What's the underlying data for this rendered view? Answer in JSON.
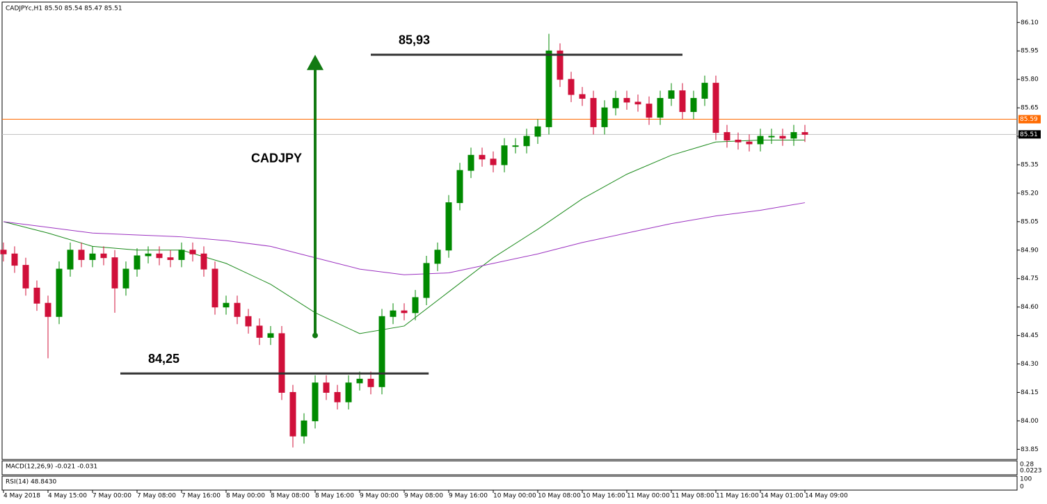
{
  "chart_data": {
    "type": "candlestick",
    "title": "CADJPYc,H1  85.50 85.54 85.47 85.51",
    "categories": [
      "4 May 2018",
      null,
      null,
      null,
      "4 May 15:00",
      null,
      null,
      null,
      "7 May 00:00",
      null,
      null,
      null,
      "7 May 08:00",
      null,
      null,
      null,
      "7 May 16:00",
      null,
      null,
      null,
      "8 May 00:00",
      null,
      null,
      null,
      "8 May 08:00",
      null,
      null,
      null,
      "8 May 16:00",
      null,
      null,
      null,
      "9 May 00:00",
      null,
      null,
      null,
      "9 May 08:00",
      null,
      null,
      null,
      "9 May 16:00",
      null,
      null,
      null,
      "10 May 00:00",
      null,
      null,
      null,
      "10 May 08:00",
      null,
      null,
      null,
      "10 May 16:00",
      null,
      null,
      null,
      "11 May 00:00",
      null,
      null,
      null,
      "11 May 08:00",
      null,
      null,
      null,
      "11 May 16:00",
      null,
      null,
      null,
      "14 May 01:00",
      null,
      null,
      null,
      "14 May 09:00"
    ],
    "open": [
      84.9,
      84.88,
      84.82,
      84.7,
      84.62,
      84.55,
      84.8,
      84.9,
      84.85,
      84.88,
      84.86,
      84.7,
      84.8,
      84.87,
      84.88,
      84.86,
      84.85,
      84.9,
      84.88,
      84.8,
      84.6,
      84.62,
      84.55,
      84.5,
      84.44,
      84.46,
      84.15,
      83.92,
      84.0,
      84.2,
      84.15,
      84.1,
      84.2,
      84.22,
      84.18,
      84.55,
      84.58,
      84.57,
      84.65,
      84.83,
      84.9,
      85.15,
      85.32,
      85.4,
      85.38,
      85.35,
      85.45,
      85.45,
      85.5,
      85.55,
      85.95,
      85.8,
      85.72,
      85.7,
      85.55,
      85.65,
      85.7,
      85.68,
      85.67,
      85.6,
      85.7,
      85.74,
      85.63,
      85.7,
      85.78,
      85.52,
      85.48,
      85.47,
      85.46,
      85.5,
      85.5,
      85.49,
      85.52
    ],
    "high": [
      84.94,
      84.92,
      84.86,
      84.74,
      84.66,
      84.84,
      84.94,
      84.94,
      84.92,
      84.92,
      84.9,
      84.84,
      84.91,
      84.92,
      84.92,
      84.9,
      84.94,
      84.94,
      84.92,
      84.84,
      84.66,
      84.66,
      84.59,
      84.54,
      84.5,
      84.5,
      84.19,
      84.04,
      84.24,
      84.24,
      84.19,
      84.24,
      84.26,
      84.26,
      84.59,
      84.62,
      84.62,
      84.69,
      84.87,
      84.94,
      85.19,
      85.36,
      85.44,
      85.44,
      85.42,
      85.49,
      85.49,
      85.54,
      85.59,
      86.04,
      85.99,
      85.84,
      85.76,
      85.74,
      85.69,
      85.74,
      85.74,
      85.72,
      85.71,
      85.74,
      85.78,
      85.78,
      85.74,
      85.82,
      85.82,
      85.56,
      85.52,
      85.51,
      85.54,
      85.54,
      85.54,
      85.56,
      85.56
    ],
    "low": [
      84.84,
      84.78,
      84.66,
      84.58,
      84.33,
      84.51,
      84.76,
      84.81,
      84.81,
      84.82,
      84.57,
      84.66,
      84.76,
      84.83,
      84.82,
      84.81,
      84.81,
      84.84,
      84.76,
      84.56,
      84.56,
      84.51,
      84.46,
      84.4,
      84.4,
      84.11,
      83.86,
      83.88,
      83.96,
      84.11,
      84.06,
      84.06,
      84.16,
      84.14,
      84.14,
      84.51,
      84.53,
      84.53,
      84.61,
      84.79,
      84.86,
      85.11,
      85.28,
      85.34,
      85.31,
      85.31,
      85.41,
      85.41,
      85.46,
      85.51,
      85.76,
      85.68,
      85.66,
      85.51,
      85.51,
      85.61,
      85.64,
      85.63,
      85.56,
      85.56,
      85.66,
      85.59,
      85.59,
      85.66,
      85.48,
      85.44,
      85.43,
      85.42,
      85.42,
      85.46,
      85.45,
      85.45,
      85.47
    ],
    "close": [
      84.88,
      84.82,
      84.7,
      84.62,
      84.55,
      84.8,
      84.9,
      84.85,
      84.88,
      84.86,
      84.7,
      84.8,
      84.87,
      84.88,
      84.86,
      84.85,
      84.9,
      84.88,
      84.8,
      84.6,
      84.62,
      84.55,
      84.5,
      84.44,
      84.46,
      84.15,
      83.92,
      84.0,
      84.2,
      84.15,
      84.1,
      84.2,
      84.22,
      84.18,
      84.55,
      84.58,
      84.57,
      84.65,
      84.83,
      84.9,
      85.15,
      85.32,
      85.4,
      85.38,
      85.35,
      85.45,
      85.45,
      85.5,
      85.55,
      85.95,
      85.8,
      85.72,
      85.7,
      85.55,
      85.65,
      85.7,
      85.68,
      85.67,
      85.6,
      85.7,
      85.74,
      85.63,
      85.7,
      85.78,
      85.52,
      85.48,
      85.47,
      85.46,
      85.5,
      85.5,
      85.49,
      85.52,
      85.51
    ],
    "up_color": "#008a00",
    "down_color": "#d0103a",
    "ylim": [
      83.8,
      86.2
    ],
    "yticks": [
      {
        "value": 86.1,
        "label": "86.10"
      },
      {
        "value": 85.95,
        "label": "85.95"
      },
      {
        "value": 85.8,
        "label": "85.80"
      },
      {
        "value": 85.65,
        "label": "85.65"
      },
      {
        "value": 85.5,
        "label": "85.50"
      },
      {
        "value": 85.35,
        "label": "85.35"
      },
      {
        "value": 85.2,
        "label": "85.20"
      },
      {
        "value": 85.05,
        "label": "85.05"
      },
      {
        "value": 84.9,
        "label": "84.90"
      },
      {
        "value": 84.75,
        "label": "84.75"
      },
      {
        "value": 84.6,
        "label": "84.60"
      },
      {
        "value": 84.45,
        "label": "84.45"
      },
      {
        "value": 84.3,
        "label": "84.30"
      },
      {
        "value": 84.15,
        "label": "84.15"
      },
      {
        "value": 84.0,
        "label": "84.00"
      },
      {
        "value": 83.85,
        "label": "83.85"
      }
    ],
    "lines": [
      {
        "color": "#1a8a1a",
        "x": [
          0,
          4,
          8,
          12,
          16,
          20,
          24,
          28,
          32,
          36,
          40,
          44,
          48,
          52,
          56,
          60,
          64,
          68,
          72
        ],
        "values": [
          85.05,
          84.99,
          84.92,
          84.9,
          84.9,
          84.83,
          84.72,
          84.57,
          84.46,
          84.5,
          84.68,
          84.86,
          85.01,
          85.17,
          85.3,
          85.4,
          85.47,
          85.48,
          85.48
        ]
      },
      {
        "color": "#9b30c0",
        "x": [
          0,
          4,
          8,
          12,
          16,
          20,
          24,
          28,
          32,
          36,
          40,
          44,
          48,
          52,
          56,
          60,
          64,
          68,
          72
        ],
        "values": [
          85.05,
          85.02,
          84.99,
          84.98,
          84.97,
          84.95,
          84.92,
          84.86,
          84.8,
          84.77,
          84.78,
          84.83,
          84.88,
          84.94,
          84.99,
          85.04,
          85.08,
          85.11,
          85.15
        ]
      }
    ],
    "hlines": [
      {
        "value": 85.59,
        "color": "#ff6a00"
      },
      {
        "value": 85.51,
        "color": "#c0c0c0"
      }
    ],
    "annotations": [
      {
        "label": "85,93",
        "value": 85.93,
        "x": [
          33,
          61
        ]
      },
      {
        "label": "84,25",
        "value": 84.25,
        "x": [
          10.5,
          38.2
        ]
      }
    ],
    "arrow": {
      "label": "CADJPY",
      "from": 84.45,
      "to": 85.93,
      "x": 28,
      "color": "#127a12"
    },
    "panes": {
      "macd": "MACD(12,26,9) -0.021 -0.031",
      "macd_ticks": [
        "0.28",
        "0.0223"
      ],
      "rsi": "RSI(14) 48.8430",
      "rsi_ticks": [
        "100",
        "0"
      ]
    }
  }
}
